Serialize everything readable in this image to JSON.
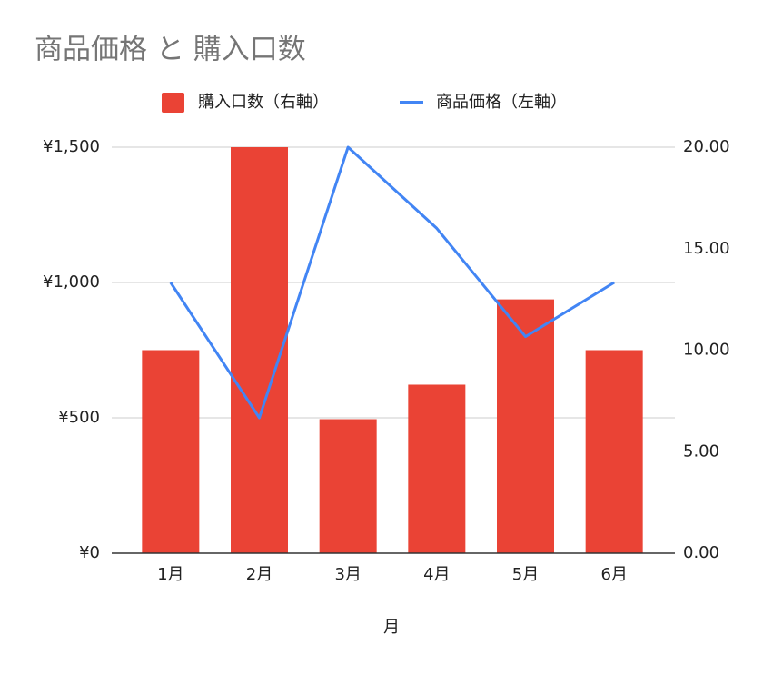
{
  "chart_data": {
    "type": "combo",
    "title": "商品価格 と 購入口数",
    "x_label": "月",
    "categories": [
      "1月",
      "2月",
      "3月",
      "4月",
      "5月",
      "6月"
    ],
    "series": [
      {
        "name": "購入口数（右軸）",
        "type": "bar",
        "axis": "y2",
        "color": "#ea4335",
        "values": [
          10,
          20,
          6.6,
          8.3,
          12.5,
          10
        ]
      },
      {
        "name": "商品価格（左軸）",
        "type": "line",
        "color": "#4285f4",
        "values": [
          1000,
          500,
          1500,
          1200,
          800,
          1000
        ]
      }
    ],
    "ylim": [
      0,
      1500
    ],
    "yticks": [
      {
        "value": 0,
        "label": "¥0"
      },
      {
        "value": 500,
        "label": "¥500"
      },
      {
        "value": 1000,
        "label": "¥1,000"
      },
      {
        "value": 1500,
        "label": "¥1,500"
      }
    ],
    "y2lim": [
      0,
      20
    ],
    "y2ticks": [
      {
        "value": 0,
        "label": "0.00"
      },
      {
        "value": 5,
        "label": "5.00"
      },
      {
        "value": 10,
        "label": "10.00"
      },
      {
        "value": 15,
        "label": "15.00"
      },
      {
        "value": 20,
        "label": "20.00"
      }
    ],
    "grid": true,
    "legend": "top"
  }
}
